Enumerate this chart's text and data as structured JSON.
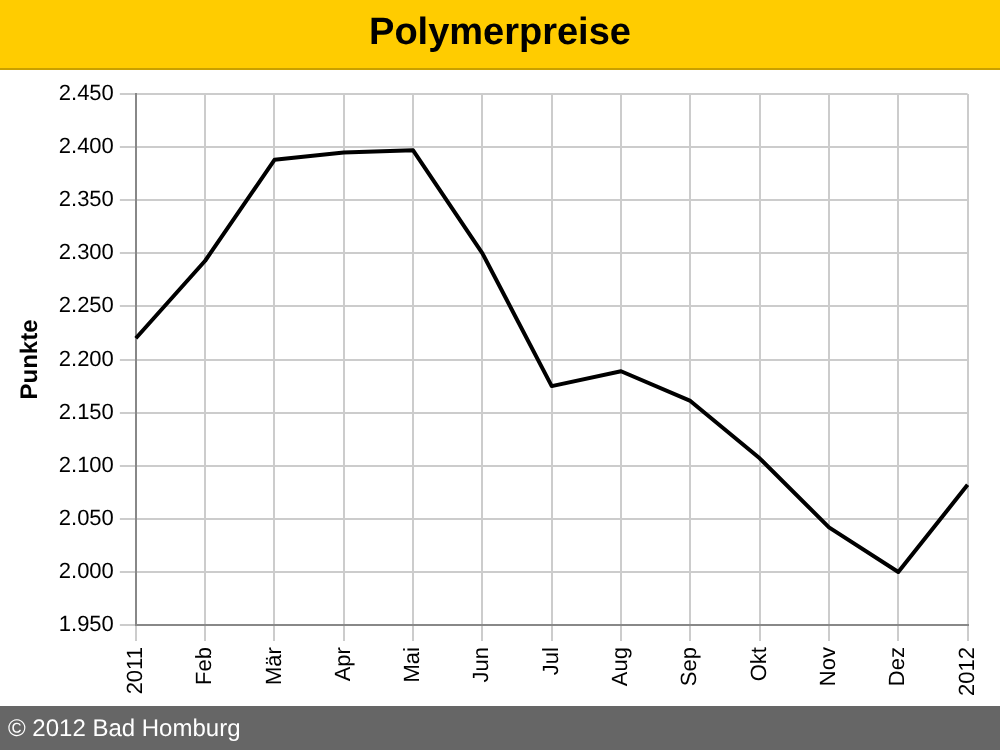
{
  "chart_data": {
    "type": "line",
    "title": "Polymerpreise",
    "ylabel": "Punkte",
    "categories": [
      "2011",
      "Feb",
      "Mär",
      "Apr",
      "Mai",
      "Jun",
      "Jul",
      "Aug",
      "Sep",
      "Okt",
      "Nov",
      "Dez",
      "2012"
    ],
    "series": [
      {
        "color": "#000000",
        "values": [
          2.22,
          2.293,
          2.388,
          2.395,
          2.397,
          2.3,
          2.175,
          2.189,
          2.161,
          2.107,
          2.042,
          2.0,
          2.082
        ]
      }
    ],
    "ylim": [
      1.95,
      2.45
    ],
    "yticks": [
      {
        "value": 1.95,
        "label": "1.950"
      },
      {
        "value": 2.0,
        "label": "2.000"
      },
      {
        "value": 2.05,
        "label": "2.050"
      },
      {
        "value": 2.1,
        "label": "2.100"
      },
      {
        "value": 2.15,
        "label": "2.150"
      },
      {
        "value": 2.2,
        "label": "2.200"
      },
      {
        "value": 2.25,
        "label": "2.250"
      },
      {
        "value": 2.3,
        "label": "2.300"
      },
      {
        "value": 2.35,
        "label": "2.350"
      },
      {
        "value": 2.4,
        "label": "2.400"
      },
      {
        "value": 2.45,
        "label": "2.450"
      }
    ],
    "grid": true,
    "marker": "none",
    "line_style": "solid",
    "annotations": [
      "© 2012 Bad Homburg"
    ]
  }
}
